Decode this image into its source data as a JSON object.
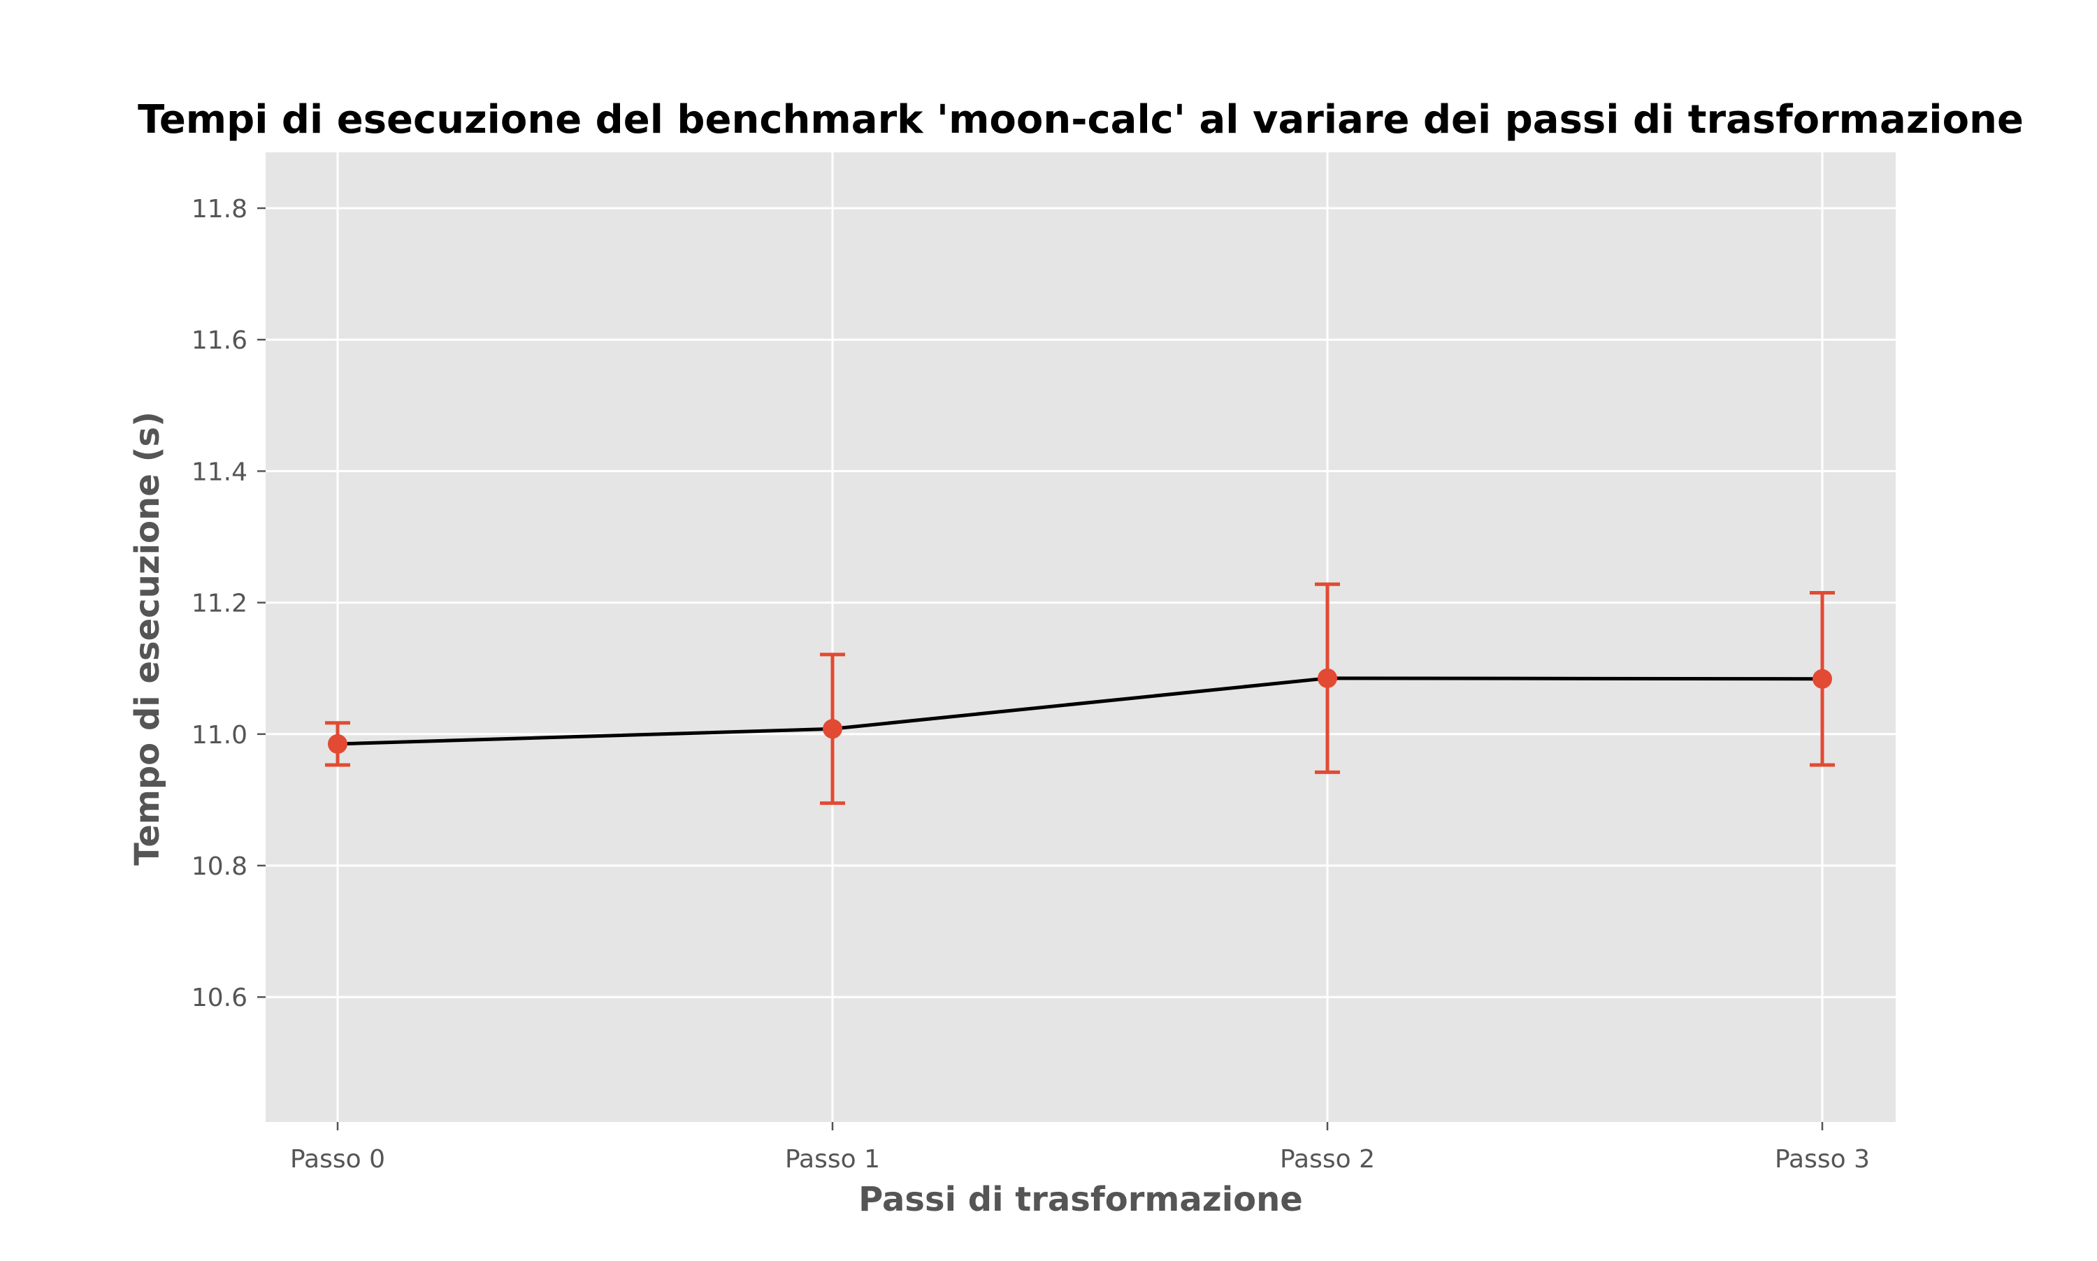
{
  "chart_data": {
    "type": "line",
    "title": "Tempi di esecuzione del benchmark 'moon-calc' al variare dei passi di trasformazione",
    "xlabel": "Passi di trasformazione",
    "ylabel": "Tempo di esecuzione (s)",
    "categories": [
      "Passo 0",
      "Passo 1",
      "Passo 2",
      "Passo 3"
    ],
    "series": [
      {
        "values": [
          10.985,
          11.008,
          11.085,
          11.084
        ],
        "errors": [
          0.032,
          0.113,
          0.143,
          0.131
        ],
        "line_color": "#000000",
        "marker_color": "#e24a33",
        "error_color": "#e24a33"
      }
    ],
    "ylim": [
      10.41,
      11.885
    ],
    "yticks": [
      10.6,
      10.8,
      11.0,
      11.2,
      11.4,
      11.6,
      11.8
    ],
    "ytick_labels": [
      "10.6",
      "10.8",
      "11.0",
      "11.2",
      "11.4",
      "11.6",
      "11.8"
    ],
    "grid": true,
    "legend": "none",
    "colors": {
      "background": "#e5e5e5",
      "grid": "#ffffff",
      "tick": "#555555"
    }
  }
}
